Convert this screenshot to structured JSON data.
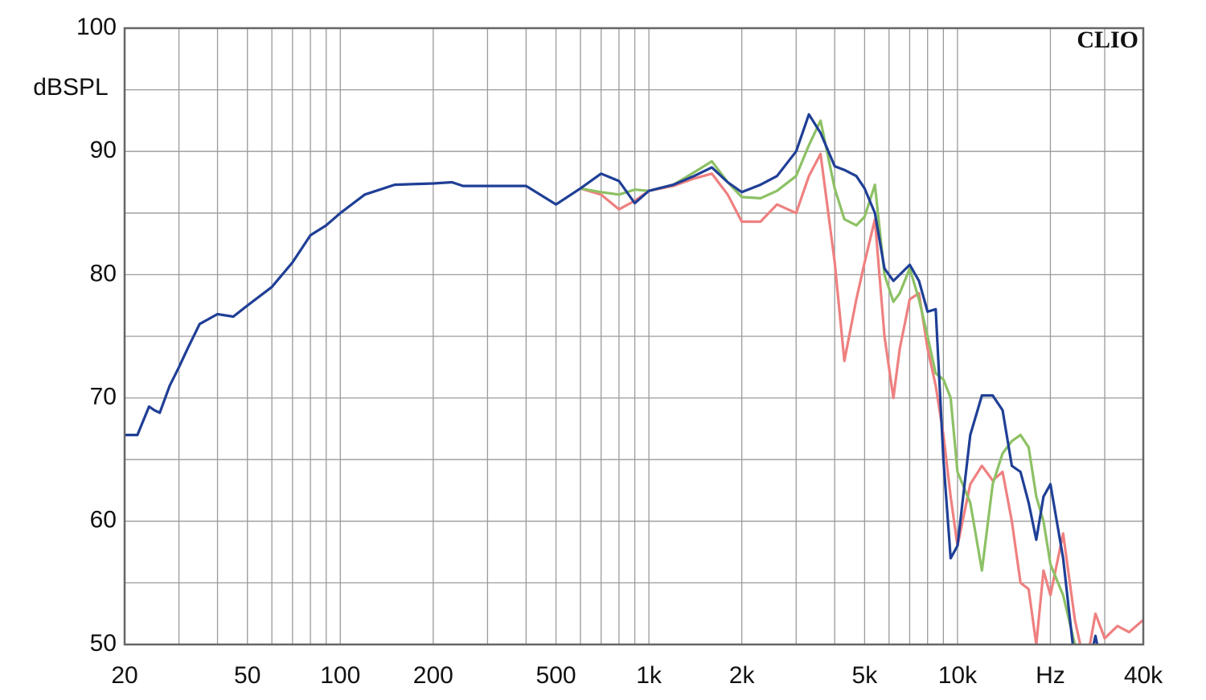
{
  "chart_data": {
    "type": "line",
    "xscale": "log",
    "ylabel": "dBSPL",
    "watermark": "CLIO",
    "xlim": [
      20,
      40000
    ],
    "ylim": [
      50,
      100
    ],
    "xticks": [
      20,
      50,
      100,
      200,
      500,
      {
        "value": 1000,
        "label": "1k"
      },
      {
        "value": 2000,
        "label": "2k"
      },
      {
        "value": 5000,
        "label": "5k"
      },
      {
        "value": 10000,
        "label": "10k"
      },
      {
        "value": 20000,
        "label": "Hz"
      },
      {
        "value": 40000,
        "label": "40k"
      }
    ],
    "xgrid": [
      30,
      40,
      60,
      70,
      80,
      90,
      300,
      400,
      600,
      700,
      800,
      900,
      3000,
      4000,
      6000,
      7000,
      8000,
      9000,
      30000
    ],
    "yticks": [
      50,
      60,
      70,
      80,
      90,
      100
    ],
    "ygrid": [
      55,
      65,
      75,
      85,
      95
    ],
    "grid": true,
    "x": [
      20,
      22,
      24,
      25,
      26,
      28,
      30,
      32,
      35,
      40,
      45,
      50,
      60,
      70,
      80,
      90,
      100,
      120,
      150,
      200,
      230,
      250,
      300,
      400,
      500,
      600,
      700,
      800,
      900,
      1000,
      1200,
      1400,
      1600,
      1800,
      2000,
      2300,
      2600,
      3000,
      3300,
      3600,
      4000,
      4300,
      4700,
      5000,
      5400,
      5800,
      6200,
      6500,
      7000,
      7500,
      8000,
      8500,
      9000,
      9500,
      10000,
      11000,
      12000,
      13000,
      14000,
      15000,
      16000,
      17000,
      18000,
      19000,
      20000,
      22000,
      24000,
      26000,
      28000,
      30000,
      33000,
      36000,
      40000
    ],
    "series": [
      {
        "color": "#ef8080",
        "values": [
          null,
          null,
          null,
          null,
          null,
          null,
          null,
          null,
          null,
          null,
          null,
          null,
          null,
          null,
          null,
          null,
          null,
          null,
          null,
          null,
          null,
          null,
          null,
          null,
          null,
          87,
          86.5,
          85.3,
          86,
          86.8,
          87.2,
          87.8,
          88.2,
          86.5,
          84.3,
          84.3,
          85.7,
          85,
          88,
          89.8,
          81,
          73,
          78,
          81,
          84.5,
          75,
          70,
          74,
          78,
          78.5,
          74,
          71,
          67,
          62,
          58,
          63,
          64.5,
          63.3,
          64,
          60,
          55,
          54.5,
          50,
          56,
          54,
          59,
          52,
          48,
          52.5,
          50.5,
          51.5,
          51,
          52
        ]
      },
      {
        "color": "#8dc165",
        "values": [
          null,
          null,
          null,
          null,
          null,
          null,
          null,
          null,
          null,
          null,
          null,
          null,
          null,
          null,
          null,
          null,
          null,
          null,
          null,
          null,
          null,
          null,
          null,
          null,
          null,
          87,
          86.7,
          86.5,
          86.9,
          86.8,
          87.3,
          88.3,
          89.2,
          87.5,
          86.3,
          86.2,
          86.8,
          88,
          90.5,
          92.5,
          87,
          84.5,
          84,
          84.7,
          87.3,
          80,
          77.8,
          78.5,
          80.5,
          78,
          75,
          72,
          71.5,
          70,
          64,
          61.5,
          56,
          63,
          65.5,
          66.5,
          67,
          66,
          62,
          60,
          56.5,
          54,
          50,
          47,
          null,
          null,
          null,
          null,
          null
        ]
      },
      {
        "color": "#1f3f96",
        "values": [
          67,
          67,
          69.3,
          69,
          68.8,
          71,
          72.5,
          74,
          76,
          76.8,
          76.6,
          77.5,
          79,
          81,
          83.2,
          84,
          85,
          86.5,
          87.3,
          87.4,
          87.5,
          87.2,
          87.2,
          87.2,
          85.7,
          87,
          88.2,
          87.6,
          85.8,
          86.8,
          87.3,
          88,
          88.7,
          87.5,
          86.7,
          87.3,
          88,
          90,
          93,
          91.5,
          88.8,
          88.5,
          88,
          87,
          85,
          80.5,
          79.5,
          80,
          80.8,
          79.5,
          77,
          77.2,
          65,
          57,
          58,
          67,
          70.2,
          70.2,
          69,
          64.5,
          64,
          61.5,
          58.5,
          62,
          63,
          57,
          48.5,
          47,
          50.7,
          47,
          null,
          null,
          null
        ]
      }
    ]
  }
}
